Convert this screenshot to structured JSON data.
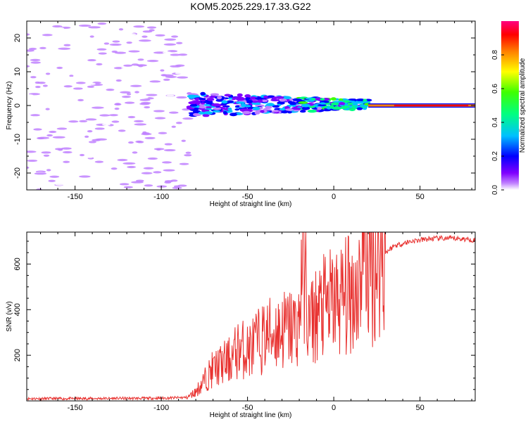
{
  "figure_title": "KOM5.2025.229.17.33.G22",
  "chart_data": [
    {
      "type": "heatmap",
      "title": "KOM5.2025.229.17.33.G22",
      "xlabel": "Height of straight line (km)",
      "ylabel": "Frequency (Hz)",
      "xlim": [
        -178,
        82
      ],
      "ylim": [
        -25,
        25
      ],
      "x_ticks": [
        -150,
        -100,
        -50,
        0,
        50
      ],
      "y_ticks": [
        -20,
        -10,
        0,
        10,
        20
      ],
      "colorbar": {
        "label": "Normalized spectral amplitude",
        "range": [
          0,
          1
        ],
        "ticks": [
          "0.0",
          "0.2",
          "0.4",
          "0.6",
          "0.8"
        ],
        "colors": [
          "#ffffff",
          "#c080ff",
          "#8000ff",
          "#0000ff",
          "#00c0ff",
          "#00ff80",
          "#40ff00",
          "#ffff00",
          "#ff8000",
          "#ff0000",
          "#ff0080"
        ]
      },
      "description_regions": [
        {
          "x_range": [
            -178,
            -84
          ],
          "freq_range": [
            -25,
            25
          ],
          "amplitude": "0.0-0.2 (noise)"
        },
        {
          "x_range": [
            -84,
            20
          ],
          "freq_range": [
            -3,
            4
          ],
          "amplitude": "0.1-0.6"
        },
        {
          "x_range": [
            20,
            82
          ],
          "freq_range": [
            -1,
            1
          ],
          "amplitude": "0.7-1.0"
        }
      ]
    },
    {
      "type": "line",
      "xlabel": "Height of straight line (km)",
      "ylabel": "SNR (v/v)",
      "xlim": [
        -178,
        82
      ],
      "ylim": [
        0,
        740
      ],
      "x_ticks": [
        -150,
        -100,
        -50,
        0,
        50
      ],
      "y_ticks": [
        200,
        400,
        600
      ],
      "series": [
        {
          "name": "SNR",
          "color": "#e8312f",
          "x": [
            -178,
            -150,
            -100,
            -85,
            -80,
            -75,
            -70,
            -65,
            -60,
            -55,
            -50,
            -45,
            -40,
            -35,
            -30,
            -25,
            -20,
            -18,
            -15,
            -10,
            -5,
            0,
            5,
            10,
            15,
            17,
            20,
            25,
            30,
            35,
            40,
            45,
            50,
            55,
            60,
            65,
            70,
            75,
            82
          ],
          "values": [
            10,
            10,
            12,
            15,
            40,
            90,
            140,
            160,
            180,
            230,
            220,
            250,
            280,
            300,
            310,
            320,
            330,
            740,
            330,
            380,
            410,
            430,
            450,
            470,
            520,
            740,
            560,
            600,
            650,
            680,
            690,
            700,
            705,
            710,
            712,
            712,
            712,
            710,
            705
          ]
        }
      ]
    }
  ]
}
